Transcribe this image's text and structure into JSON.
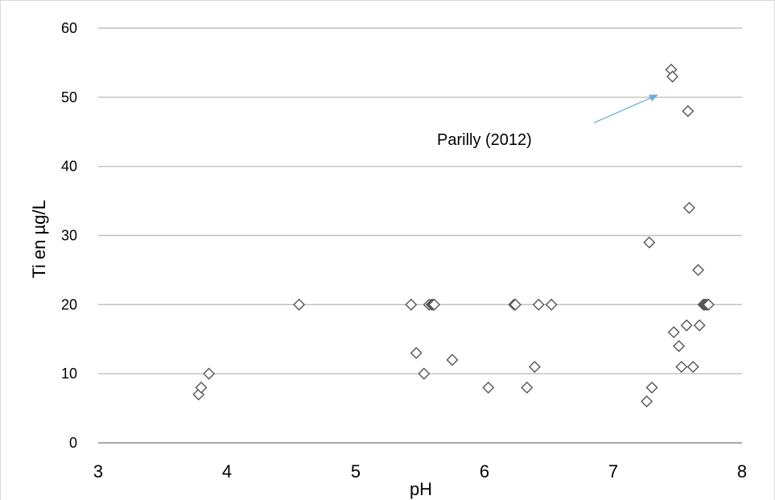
{
  "chart_data": {
    "type": "scatter",
    "title": "",
    "xlabel": "pH",
    "ylabel": "Ti en µg/L",
    "xlim": [
      3,
      8
    ],
    "ylim": [
      0,
      60
    ],
    "x_ticks": [
      "3",
      "4",
      "5",
      "6",
      "7",
      "8"
    ],
    "y_ticks": [
      "0",
      "10",
      "20",
      "30",
      "40",
      "50",
      "60"
    ],
    "grid": "horizontal",
    "marker": "diamond-open",
    "marker_color": "#555555",
    "annotation": {
      "text": "Parilly (2012)",
      "arrow_color": "#6baed6",
      "points_to": [
        7.35,
        50.4
      ],
      "arrow_from": [
        6.85,
        46.3
      ]
    },
    "points": [
      [
        3.78,
        7
      ],
      [
        3.8,
        8
      ],
      [
        3.86,
        10
      ],
      [
        4.56,
        20
      ],
      [
        5.43,
        20
      ],
      [
        5.47,
        13
      ],
      [
        5.53,
        10
      ],
      [
        5.57,
        20
      ],
      [
        5.59,
        20
      ],
      [
        5.6,
        20
      ],
      [
        5.61,
        20
      ],
      [
        5.75,
        12
      ],
      [
        6.03,
        8
      ],
      [
        6.23,
        20
      ],
      [
        6.24,
        20
      ],
      [
        6.33,
        8
      ],
      [
        6.39,
        11
      ],
      [
        6.42,
        20
      ],
      [
        6.52,
        20
      ],
      [
        7.26,
        6
      ],
      [
        7.28,
        29
      ],
      [
        7.3,
        8
      ],
      [
        7.45,
        54
      ],
      [
        7.46,
        53
      ],
      [
        7.47,
        16
      ],
      [
        7.51,
        14
      ],
      [
        7.53,
        11
      ],
      [
        7.57,
        17
      ],
      [
        7.58,
        48
      ],
      [
        7.59,
        34
      ],
      [
        7.62,
        11
      ],
      [
        7.66,
        25
      ],
      [
        7.67,
        17
      ],
      [
        7.7,
        20
      ],
      [
        7.71,
        20
      ],
      [
        7.72,
        20
      ],
      [
        7.73,
        20
      ],
      [
        7.74,
        20
      ]
    ]
  }
}
